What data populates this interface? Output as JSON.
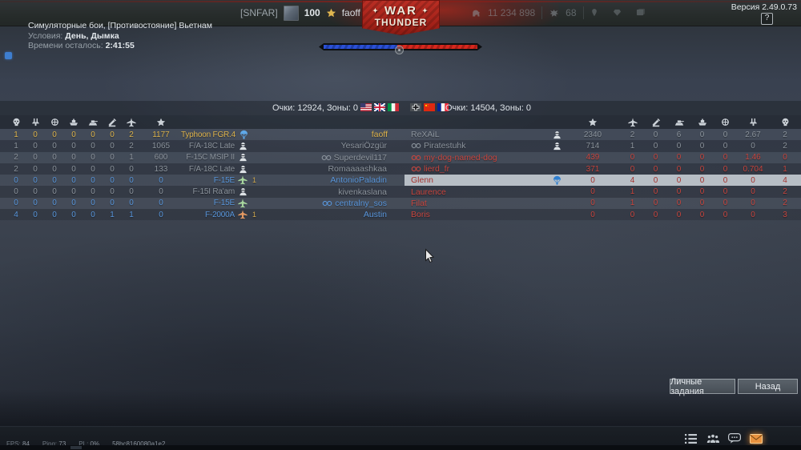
{
  "meta": {
    "version": "Версия 2.49.0.73",
    "help_label": "?"
  },
  "top_bar": {
    "clan_tag": "[SNFAR]",
    "level": "100",
    "player": "faoff",
    "silver_lions": "11 234 898",
    "golden_eagles": "68",
    "misc_icons": [
      "pin",
      "gem",
      "card"
    ],
    "logo": {
      "war": "WAR",
      "thunder": "THUNDER",
      "star": "✦"
    }
  },
  "mission": {
    "title": "Симуляторные бои, [Противостояние] Вьетнам",
    "conditions_label": "Условия:",
    "conditions_value": "День, Дымка",
    "time_label": "Времени осталось:",
    "time_value": "2:41:55"
  },
  "scoreboard": {
    "left_score": "Очки: 12924, Зоны: 0",
    "right_score": "Очки: 14504, Зоны: 0",
    "left_flags": [
      "usa",
      "uk",
      "italy"
    ],
    "right_flags": [
      "germany",
      "china",
      "france"
    ],
    "left_header_icons": [
      "skull",
      "aa-gun",
      "wheel",
      "ship",
      "tank",
      "aaa",
      "plane",
      "star"
    ],
    "right_header_icons": [
      "star",
      "plane",
      "aaa",
      "tank",
      "ship",
      "wheel",
      "aa-gun",
      "skull"
    ],
    "left_team": [
      {
        "stats": [
          "1",
          "0",
          "0",
          "0",
          "0",
          "0",
          "2"
        ],
        "score": "1177",
        "vehicle": "Typhoon FGR.4",
        "status": "parachute",
        "marker": "",
        "name": "faoff",
        "squad": false,
        "color": "self"
      },
      {
        "stats": [
          "1",
          "0",
          "0",
          "0",
          "0",
          "0",
          "2"
        ],
        "score": "1065",
        "vehicle": "F/A-18C Late",
        "status": "pilot",
        "marker": "",
        "name": "YesariÖzgür",
        "squad": false,
        "color": "neutral"
      },
      {
        "stats": [
          "2",
          "0",
          "0",
          "0",
          "0",
          "0",
          "1"
        ],
        "score": "600",
        "vehicle": "F-15C MSIP II",
        "status": "pilot",
        "marker": "",
        "name": "Superdevil117",
        "squad": true,
        "color": "neutral"
      },
      {
        "stats": [
          "2",
          "0",
          "0",
          "0",
          "0",
          "0",
          "0"
        ],
        "score": "133",
        "vehicle": "F/A-18C Late",
        "status": "pilot",
        "marker": "",
        "name": "Romaaaashkaa",
        "squad": false,
        "color": "neutral"
      },
      {
        "stats": [
          "0",
          "0",
          "0",
          "0",
          "0",
          "0",
          "0"
        ],
        "score": "0",
        "vehicle": "F-15E",
        "status": "jet-green",
        "marker": "1",
        "name": "AntonioPaladin",
        "squad": false,
        "color": "ally"
      },
      {
        "stats": [
          "0",
          "0",
          "0",
          "0",
          "0",
          "0",
          "0"
        ],
        "score": "0",
        "vehicle": "F-15I Ra'am",
        "status": "pilot",
        "marker": "",
        "name": "kivenkaslana",
        "squad": false,
        "color": "neutral"
      },
      {
        "stats": [
          "0",
          "0",
          "0",
          "0",
          "0",
          "0",
          "0"
        ],
        "score": "0",
        "vehicle": "F-15E",
        "status": "jet-green",
        "marker": "",
        "name": "centralny_sos",
        "squad": true,
        "color": "ally"
      },
      {
        "stats": [
          "4",
          "0",
          "0",
          "0",
          "0",
          "1",
          "1"
        ],
        "score": "0",
        "vehicle": "F-2000A",
        "status": "jet-orange",
        "marker": "1",
        "name": "Austin",
        "squad": false,
        "color": "ally"
      }
    ],
    "right_team": [
      {
        "name": "ReXAiL",
        "squad": false,
        "status": "pilot",
        "score": "2340",
        "stats": [
          "2",
          "0",
          "6",
          "0",
          "0",
          "2.67",
          "2"
        ],
        "color": "neutral",
        "selected": false
      },
      {
        "name": "Piratestuhk",
        "squad": true,
        "status": "pilot",
        "score": "714",
        "stats": [
          "1",
          "0",
          "0",
          "0",
          "0",
          "0",
          "2"
        ],
        "color": "neutral",
        "selected": false
      },
      {
        "name": "my-dog-named-dog",
        "squad": true,
        "status": "",
        "score": "439",
        "stats": [
          "0",
          "0",
          "0",
          "0",
          "0",
          "1.46",
          "0"
        ],
        "color": "enemy",
        "selected": false
      },
      {
        "name": "lierd_fr",
        "squad": true,
        "status": "",
        "score": "371",
        "stats": [
          "0",
          "0",
          "0",
          "0",
          "0",
          "0.704",
          "1"
        ],
        "color": "enemy",
        "selected": false
      },
      {
        "name": "Glenn",
        "squad": false,
        "status": "parachute",
        "score": "0",
        "stats": [
          "4",
          "0",
          "0",
          "0",
          "0",
          "0",
          "4"
        ],
        "color": "enemy",
        "selected": true
      },
      {
        "name": "Laurence",
        "squad": false,
        "status": "",
        "score": "0",
        "stats": [
          "1",
          "0",
          "0",
          "0",
          "0",
          "0",
          "2"
        ],
        "color": "enemy",
        "selected": false
      },
      {
        "name": "Filat",
        "squad": false,
        "status": "",
        "score": "0",
        "stats": [
          "1",
          "0",
          "0",
          "0",
          "0",
          "0",
          "2"
        ],
        "color": "enemy",
        "selected": false
      },
      {
        "name": "Boris",
        "squad": false,
        "status": "",
        "score": "0",
        "stats": [
          "0",
          "0",
          "0",
          "0",
          "0",
          "0",
          "3"
        ],
        "color": "enemy",
        "selected": false
      }
    ]
  },
  "buttons": {
    "personal_tasks": "Личные задания",
    "back": "Назад"
  },
  "bottom_bar": {
    "icons": [
      "list",
      "squadron",
      "chat",
      "mail"
    ]
  },
  "status_line": {
    "fps_label": "FPS:",
    "fps": "84",
    "ping_label": "Ping:",
    "ping": "73",
    "pl_label": "PL:",
    "pl": "0%",
    "session_id": "58bc8160080a1e2"
  },
  "colors": {
    "self": "#dcb24c",
    "ally": "#5895da",
    "enemy": "#c7453e",
    "neutral": "#8b939c",
    "selected_bg": "#b7bec5",
    "accent_red": "#a32118"
  }
}
